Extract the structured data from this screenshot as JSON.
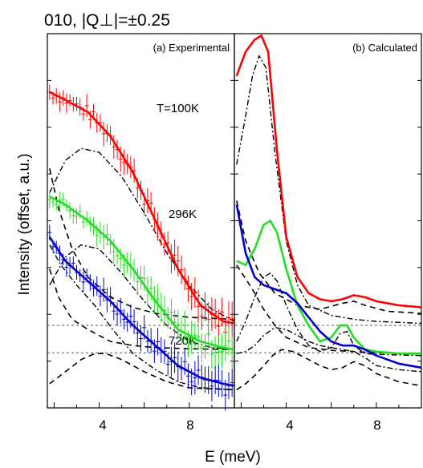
{
  "chart_data": {
    "type": "line",
    "title": "010, |Q⊥|=±0.25",
    "xlabel": "E (meV)",
    "ylabel": "Intensity (offset, a.u.)",
    "xlim": [
      1.7,
      10.0
    ],
    "xticks": [
      "4",
      "8"
    ],
    "panels": [
      {
        "label": "(a) Experimental",
        "kind": "experimental"
      },
      {
        "label": "(b) Calculated",
        "kind": "calculated"
      }
    ],
    "temperatures": [
      {
        "label": "T=100K",
        "value": 100,
        "color": "#ff0000"
      },
      {
        "label": "296K",
        "value": 296,
        "color": "#22dd22"
      },
      {
        "label": "720K",
        "value": 720,
        "color": "#0000cc"
      }
    ],
    "experimental": {
      "100K": {
        "fit": {
          "x": [
            1.8,
            2.5,
            3.5,
            4.5,
            5.5,
            6.5,
            7.5,
            8.5,
            9.5,
            10.0
          ],
          "y": [
            8.8,
            8.6,
            8.3,
            7.7,
            6.8,
            5.6,
            4.4,
            3.5,
            3.1,
            3.05
          ]
        },
        "dashdot": {
          "x": [
            1.8,
            2.5,
            3.2,
            4.0,
            5.0,
            6.0,
            7.0,
            8.0,
            9.0,
            10.0
          ],
          "y": [
            6.3,
            7.1,
            7.4,
            7.3,
            6.7,
            5.8,
            4.8,
            4.0,
            3.4,
            3.1
          ]
        },
        "dashed": {
          "x": [
            1.8,
            2.2,
            2.8,
            3.5,
            4.5,
            5.5,
            6.5,
            8.0,
            10.0
          ],
          "y": [
            6.9,
            5.9,
            4.9,
            4.2,
            3.7,
            3.45,
            3.3,
            3.2,
            3.15
          ]
        }
      },
      "296K": {
        "fit": {
          "x": [
            1.8,
            2.5,
            3.5,
            4.5,
            5.5,
            6.5,
            7.5,
            8.5,
            9.5,
            10.0
          ],
          "y": [
            6.2,
            6.0,
            5.6,
            5.1,
            4.4,
            3.6,
            2.9,
            2.6,
            2.45,
            2.4
          ]
        },
        "dashdot": {
          "x": [
            1.8,
            2.5,
            3.2,
            4.0,
            5.0,
            6.0,
            7.0,
            8.0,
            9.0,
            10.0
          ],
          "y": [
            4.0,
            4.7,
            5.0,
            4.9,
            4.3,
            3.6,
            3.0,
            2.6,
            2.45,
            2.4
          ]
        },
        "dashed": {
          "x": [
            1.8,
            2.2,
            2.8,
            3.5,
            4.5,
            5.5,
            6.5,
            8.0,
            10.0
          ],
          "y": [
            4.4,
            3.7,
            3.15,
            2.9,
            2.6,
            2.5,
            2.45,
            2.42,
            2.4
          ]
        }
      },
      "720K": {
        "fit": {
          "x": [
            1.8,
            2.5,
            3.5,
            4.5,
            5.5,
            6.5,
            7.5,
            8.5,
            9.5,
            10.0
          ],
          "y": [
            5.2,
            4.6,
            4.1,
            3.6,
            3.0,
            2.5,
            2.0,
            1.7,
            1.55,
            1.5
          ]
        },
        "dashdot": {
          "x": [
            1.8,
            2.3,
            3.0,
            3.8,
            4.6,
            5.5,
            6.5,
            7.5,
            8.5,
            10.0
          ],
          "y": [
            5.0,
            4.5,
            4.0,
            3.5,
            2.9,
            2.3,
            1.9,
            1.6,
            1.45,
            1.4
          ]
        },
        "dashed": {
          "x": [
            1.8,
            2.5,
            3.2,
            3.8,
            4.3,
            5.0,
            6.0,
            7.0,
            8.0,
            10.0
          ],
          "y": [
            1.55,
            1.85,
            2.15,
            2.3,
            2.3,
            2.15,
            1.85,
            1.6,
            1.45,
            1.4
          ]
        }
      }
    },
    "calculated": {
      "100K": {
        "fit": {
          "x": [
            1.8,
            2.2,
            2.6,
            2.9,
            3.2,
            3.6,
            4.0,
            4.5,
            5.0,
            5.5,
            6.0,
            6.5,
            7.0,
            7.5,
            8.0,
            9.0,
            10.0
          ],
          "y": [
            9.2,
            9.8,
            10.1,
            10.2,
            9.8,
            7.3,
            5.2,
            4.2,
            3.8,
            3.65,
            3.6,
            3.65,
            3.75,
            3.7,
            3.6,
            3.5,
            3.45
          ]
        },
        "dashdot": {
          "x": [
            1.8,
            2.2,
            2.5,
            2.8,
            3.1,
            3.5,
            4.0,
            4.5,
            5.0,
            6.0,
            7.0,
            8.0,
            10.0
          ],
          "y": [
            7.0,
            8.2,
            9.2,
            9.7,
            9.4,
            7.3,
            5.1,
            4.0,
            3.5,
            3.25,
            3.15,
            3.1,
            3.05
          ]
        },
        "dashed": {
          "x": [
            1.8,
            2.2,
            2.8,
            3.5,
            4.5,
            5.5,
            6.5,
            7.0,
            7.5,
            8.5,
            10.0
          ],
          "y": [
            6.1,
            5.1,
            4.3,
            3.8,
            3.5,
            3.4,
            3.55,
            3.6,
            3.5,
            3.35,
            3.3
          ]
        }
      },
      "296K": {
        "fit": {
          "x": [
            1.8,
            2.2,
            2.6,
            3.0,
            3.3,
            3.6,
            4.0,
            4.5,
            5.0,
            5.5,
            6.0,
            6.4,
            6.7,
            7.0,
            7.5,
            8.0,
            9.0,
            10.0
          ],
          "y": [
            4.6,
            4.5,
            4.9,
            5.5,
            5.6,
            5.3,
            4.4,
            3.5,
            3.0,
            2.6,
            2.7,
            3.0,
            3.0,
            2.7,
            2.4,
            2.35,
            2.3,
            2.3
          ]
        },
        "dashdot": {
          "x": [
            1.8,
            2.2,
            2.6,
            3.0,
            3.3,
            3.6,
            4.0,
            4.5,
            5.0,
            5.5,
            6.0,
            6.4,
            6.7,
            7.0,
            7.5,
            8.0,
            10.0
          ],
          "y": [
            2.6,
            3.1,
            3.7,
            4.2,
            4.3,
            4.1,
            3.5,
            2.9,
            2.5,
            2.35,
            2.45,
            2.8,
            2.85,
            2.5,
            2.3,
            2.28,
            2.25
          ]
        },
        "dashed": {
          "x": [
            1.8,
            2.5,
            3.0,
            3.5,
            4.0,
            5.0,
            6.0,
            7.0,
            8.0,
            10.0
          ],
          "y": [
            4.5,
            3.9,
            3.4,
            3.0,
            2.7,
            2.45,
            2.38,
            2.35,
            2.32,
            2.3
          ]
        }
      },
      "720K": {
        "fit": {
          "x": [
            1.8,
            2.2,
            2.6,
            3.0,
            3.5,
            4.0,
            4.5,
            5.0,
            5.5,
            6.0,
            6.5,
            7.0,
            7.5,
            8.0,
            9.0,
            10.0
          ],
          "y": [
            6.0,
            4.8,
            4.2,
            4.0,
            3.9,
            3.8,
            3.55,
            3.2,
            2.85,
            2.6,
            2.5,
            2.5,
            2.4,
            2.25,
            2.05,
            1.95
          ]
        },
        "dashdot": {
          "x": [
            1.8,
            2.2,
            2.6,
            3.0,
            3.5,
            4.0,
            4.5,
            5.0,
            5.5,
            6.0,
            6.5,
            7.0,
            7.5,
            8.0,
            9.0,
            10.0
          ],
          "y": [
            2.3,
            2.35,
            2.5,
            2.75,
            2.95,
            2.9,
            2.75,
            2.6,
            2.5,
            2.45,
            2.4,
            2.35,
            2.2,
            2.0,
            1.9,
            1.85
          ]
        },
        "dashed": {
          "x": [
            1.8,
            2.2,
            2.6,
            3.0,
            3.4,
            3.8,
            4.3,
            5.0,
            5.5,
            6.0,
            6.5,
            7.0,
            7.5,
            8.0,
            9.0,
            10.0
          ],
          "y": [
            1.4,
            1.55,
            1.75,
            2.0,
            2.25,
            2.4,
            2.35,
            2.15,
            2.0,
            1.9,
            1.95,
            2.1,
            2.0,
            1.8,
            1.6,
            1.5
          ]
        }
      }
    }
  }
}
